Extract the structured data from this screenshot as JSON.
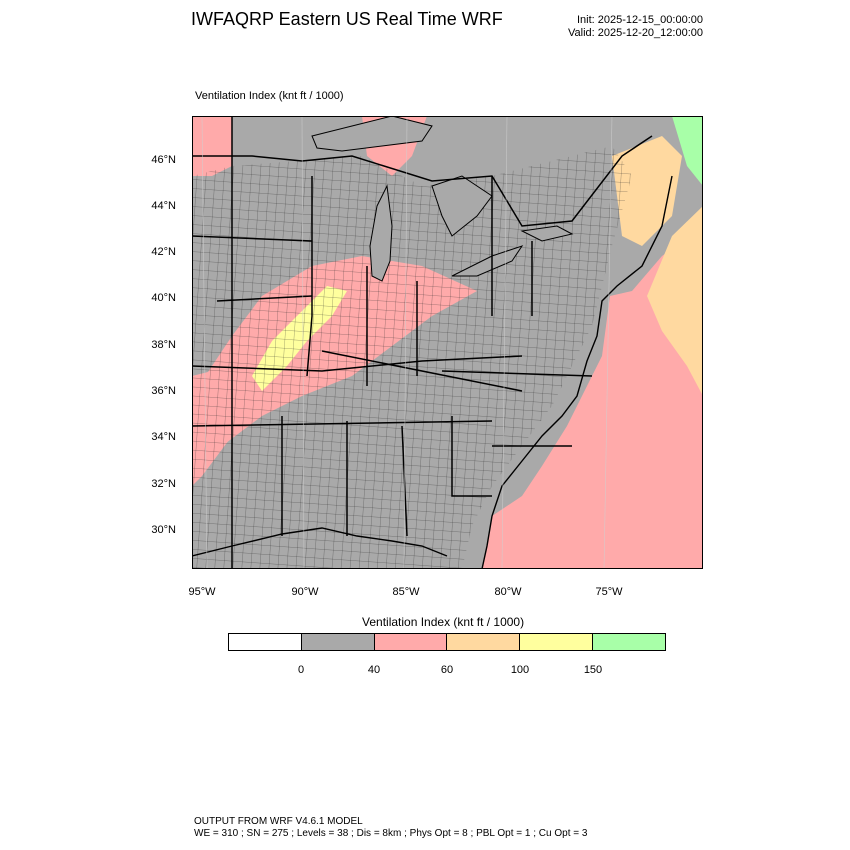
{
  "header": {
    "title": "IWFAQRP Eastern US Real Time WRF",
    "init": "Init: 2025-12-15_00:00:00",
    "valid": "Valid: 2025-12-20_12:00:00"
  },
  "map": {
    "subtitle": "Ventilation Index   (knt ft / 1000)",
    "lat_labels": [
      "46°N",
      "44°N",
      "42°N",
      "40°N",
      "38°N",
      "36°N",
      "34°N",
      "32°N",
      "30°N"
    ],
    "lon_labels": [
      "95°W",
      "90°W",
      "85°W",
      "80°W",
      "75°W"
    ]
  },
  "colorbar": {
    "title": "Ventilation Index  (knt ft / 1000)",
    "ticks": [
      "0",
      "40",
      "60",
      "100",
      "150"
    ],
    "colors": [
      "#ffffff",
      "#a9a9a9",
      "#ffaaaa",
      "#ffd9a0",
      "#ffff9e",
      "#a8ffa8"
    ]
  },
  "colors": {
    "land_low": "#a9a9a9",
    "pink": "#ffaaaa",
    "orange": "#ffd9a0",
    "yellow": "#ffff9e",
    "green": "#a8ffa8"
  },
  "footer": {
    "line1": "OUTPUT FROM WRF V4.6.1 MODEL",
    "line2": "WE = 310 ; SN = 275 ; Levels = 38 ; Dis = 8km ; Phys Opt = 8 ; PBL Opt = 1 ; Cu Opt = 3"
  }
}
